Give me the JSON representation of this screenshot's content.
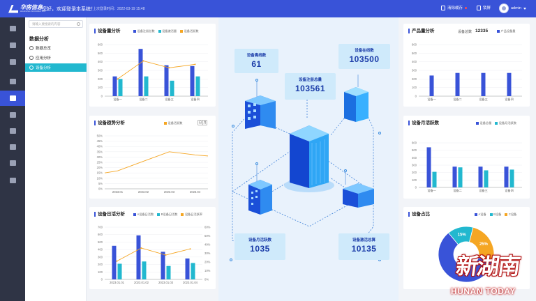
{
  "header": {
    "logo_name": "华房信息",
    "logo_sub": "HUAFANG INFORMATION",
    "welcome": "您好，欢迎登录本系统！",
    "last_login": "上次登录时间：2022-03-19 15:48",
    "clear_cache": "清除缓存",
    "lock": "锁屏",
    "user": "admin"
  },
  "nav_icons": [
    "home-icon",
    "document-icon",
    "device-icon",
    "list-icon",
    "analytics-icon",
    "monitor-icon",
    "chart-icon",
    "pie-icon",
    "location-icon",
    "settings-icon"
  ],
  "submenu": {
    "search_placeholder": "请输入要搜索的内容",
    "title": "数据分析",
    "items": [
      "数据总览",
      "应用分析",
      "设备分析"
    ],
    "active_index": 2
  },
  "colors": {
    "primary": "#3953d8",
    "teal": "#22b8cf",
    "orange": "#f5a623",
    "sidebar": "#2f3445"
  },
  "chart_data": [
    {
      "id": "device-quantity",
      "type": "bar",
      "title": "设备量分析",
      "categories": [
        "设备一",
        "设备二",
        "设备三",
        "设备四"
      ],
      "series": [
        {
          "name": "设备注册总数",
          "type": "bar",
          "values": [
            230,
            550,
            360,
            350
          ]
        },
        {
          "name": "设备激活量",
          "type": "bar",
          "values": [
            200,
            230,
            180,
            230
          ]
        },
        {
          "name": "设备活跃数",
          "type": "line",
          "values": [
            200,
            410,
            330,
            370
          ]
        }
      ],
      "ylim": [
        0,
        600
      ],
      "yticks": [
        0,
        100,
        200,
        300,
        400,
        500,
        600
      ]
    },
    {
      "id": "device-trend",
      "type": "line",
      "title": "设备趋势分析",
      "categories": [
        "2023.01",
        "2023.02",
        "2023.03",
        "2023.04"
      ],
      "series": [
        {
          "name": "设备活跃数",
          "values": [
            17,
            26,
            35,
            32
          ]
        }
      ],
      "ylim": [
        0,
        50
      ],
      "yticks": [
        "0%",
        "5%",
        "10%",
        "15%",
        "20%",
        "25%",
        "30%",
        "35%",
        "40%",
        "45%",
        "50%"
      ],
      "toggle": [
        "日",
        "月"
      ]
    },
    {
      "id": "device-daily-active",
      "type": "bar",
      "title": "设备日活分析",
      "categories": [
        "2023.01.01",
        "2023.01.02",
        "2023.01.03",
        "2023.01.04"
      ],
      "series": [
        {
          "name": "A设备日活数",
          "type": "bar",
          "values": [
            450,
            590,
            370,
            280
          ]
        },
        {
          "name": "B设备日活数",
          "type": "bar",
          "values": [
            210,
            240,
            180,
            220
          ]
        },
        {
          "name": "设备日活跃率",
          "type": "line",
          "values": [
            21,
            36,
            28,
            35
          ]
        }
      ],
      "ylim": [
        0,
        700
      ],
      "yticks": [
        0,
        100,
        200,
        300,
        400,
        500,
        600,
        700
      ],
      "y2ticks": [
        "0%",
        "10%",
        "20%",
        "30%",
        "40%",
        "50%",
        "60%"
      ]
    },
    {
      "id": "product-quantity",
      "type": "bar",
      "title": "产品量分析",
      "total_label": "设备总数",
      "total": "12335",
      "categories": [
        "设备一",
        "设备二",
        "设备三",
        "设备四"
      ],
      "series": [
        {
          "name": "产品设备量",
          "values": [
            240,
            270,
            270,
            270
          ]
        }
      ],
      "ylim": [
        0,
        600
      ],
      "yticks": [
        0,
        100,
        200,
        300,
        400,
        500,
        600
      ]
    },
    {
      "id": "device-monthly-active",
      "type": "bar",
      "title": "设备月活跃数",
      "categories": [
        "设备一",
        "设备二",
        "设备三",
        "设备四"
      ],
      "series": [
        {
          "name": "设备总量",
          "values": [
            540,
            280,
            280,
            280
          ]
        },
        {
          "name": "设备月活跃数",
          "values": [
            210,
            270,
            230,
            240
          ]
        }
      ],
      "ylim": [
        0,
        600
      ],
      "yticks": [
        0,
        100,
        200,
        300,
        400,
        500,
        600
      ]
    },
    {
      "id": "device-share",
      "type": "pie",
      "title": "设备占比",
      "labels": [
        "A设备",
        "B设备",
        "C设备"
      ],
      "values": [
        60,
        15,
        25
      ],
      "display": [
        "",
        "15%",
        "25%"
      ]
    }
  ],
  "center": {
    "offline": {
      "title": "设备离线数",
      "value": "61"
    },
    "online": {
      "title": "设备在线数",
      "value": "103500"
    },
    "registered": {
      "title": "设备注册总量",
      "value": "103561"
    },
    "monthly_active": {
      "title": "设备月活跃数",
      "value": "1035"
    },
    "activated": {
      "title": "设备激活总算",
      "value": "10135"
    }
  },
  "watermark": {
    "cn": "新湖南",
    "en": "HUNAN TODAY"
  }
}
